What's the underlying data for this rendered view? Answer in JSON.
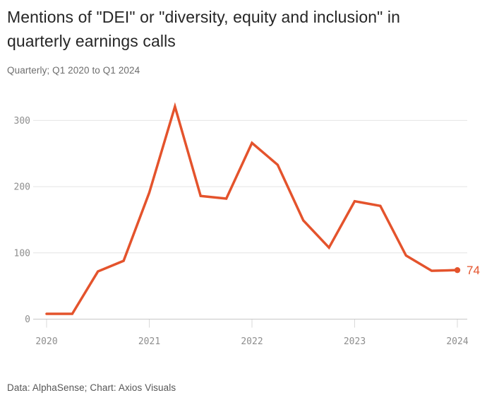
{
  "header": {
    "title_line1": "Mentions of \"DEI\" or \"diversity, equity and inclusion\" in",
    "title_line2": "quarterly earnings calls",
    "subtitle": "Quarterly; Q1 2020 to Q1 2024"
  },
  "footer": {
    "credit": "Data: AlphaSense; Chart: Axios Visuals"
  },
  "colors": {
    "line": "#e4532c",
    "end_dot": "#e4532c",
    "end_label": "#e4532c",
    "title_text": "#262626",
    "subtitle_text": "#6d6d6d",
    "axis_text": "#8e8e8e",
    "gridline": "#e4e4e4",
    "baseline": "#c7c7c7",
    "tick": "#d9d9d9",
    "background": "#ffffff"
  },
  "chart_data": {
    "type": "line",
    "title": "Mentions of \"DEI\" or \"diversity, equity and inclusion\" in quarterly earnings calls",
    "subtitle": "Quarterly; Q1 2020 to Q1 2024",
    "categories": [
      "Q1 2020",
      "Q2 2020",
      "Q3 2020",
      "Q4 2020",
      "Q1 2021",
      "Q2 2021",
      "Q3 2021",
      "Q4 2021",
      "Q1 2022",
      "Q2 2022",
      "Q3 2022",
      "Q4 2022",
      "Q1 2023",
      "Q2 2023",
      "Q3 2023",
      "Q4 2023",
      "Q1 2024"
    ],
    "values": [
      8,
      8,
      72,
      88,
      191,
      321,
      186,
      182,
      266,
      233,
      149,
      108,
      178,
      171,
      96,
      73,
      74
    ],
    "x_tick_labels": [
      "2020",
      "2021",
      "2022",
      "2023",
      "2024"
    ],
    "y_ticks": [
      0,
      100,
      200,
      300
    ],
    "ylim": [
      0,
      340
    ],
    "xlabel": "",
    "ylabel": "",
    "grid": true,
    "legend": false,
    "end_label": "74",
    "last_value": 74
  }
}
